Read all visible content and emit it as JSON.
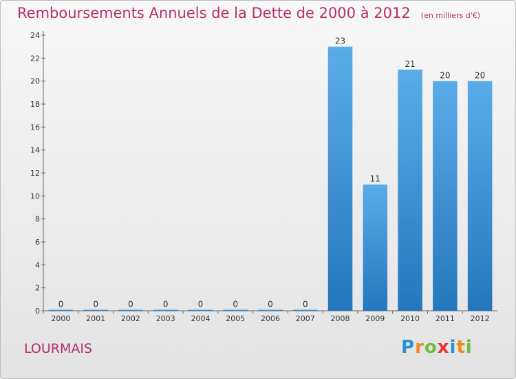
{
  "title": "Remboursements Annuels de la Dette de 2000 à 2012",
  "subtitle": "(en milliers d'€)",
  "commune": "LOURMAIS",
  "logo": {
    "letters": [
      "P",
      "r",
      "o",
      "x",
      "i",
      "t",
      "i"
    ],
    "colors": [
      "#2c8fd8",
      "#f08a1c",
      "#6cbf3a",
      "#e8333b",
      "#2c8fd8",
      "#f08a1c",
      "#6cbf3a"
    ]
  },
  "colors": {
    "bar_light": "#5aace8",
    "bar_dark": "#2577bd",
    "title": "#b5306b"
  },
  "chart_data": {
    "type": "bar",
    "categories": [
      "2000",
      "2001",
      "2002",
      "2003",
      "2004",
      "2005",
      "2006",
      "2007",
      "2008",
      "2009",
      "2010",
      "2011",
      "2012"
    ],
    "values": [
      0,
      0,
      0,
      0,
      0,
      0,
      0,
      0,
      23,
      11,
      21,
      20,
      20
    ],
    "data_labels": [
      "0",
      "0",
      "0",
      "0",
      "0",
      "0",
      "0",
      "0",
      "23",
      "11",
      "21",
      "20",
      "20"
    ],
    "yticks": [
      "0",
      "2",
      "4",
      "6",
      "8",
      "10",
      "12",
      "14",
      "16",
      "18",
      "20",
      "22",
      "24"
    ],
    "ylim": [
      0,
      24
    ],
    "grid": false,
    "legend": "none"
  }
}
